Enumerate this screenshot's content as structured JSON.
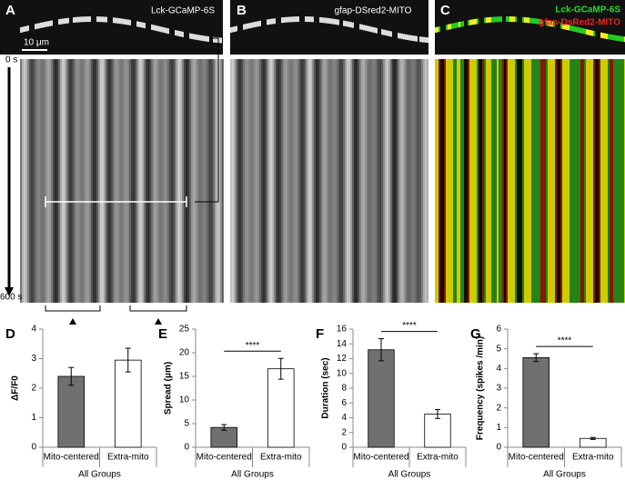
{
  "panels": [
    {
      "panel_label": "A",
      "label": "Lck-GCaMP-6S",
      "scale_bar": "10 μm",
      "time_start": "0 s",
      "time_end": "600 s"
    },
    {
      "panel_label": "B",
      "label": "gfap-DSred2-MITO"
    },
    {
      "panel_label": "C",
      "labels": [
        "Lck-GCaMP-6S",
        "gfap-DsRed2-MITO"
      ]
    }
  ],
  "chart_data": [
    {
      "type": "bar",
      "panel_label": "D",
      "ylabel": "ΔF/F0",
      "xlabel": "All Groups",
      "categories": [
        "Mito-centered",
        "Extra-mito"
      ],
      "values": [
        2.4,
        2.95
      ],
      "errors": [
        0.3,
        0.4
      ],
      "colors": [
        "#707070",
        "#ffffff"
      ],
      "ylim": [
        0,
        4
      ],
      "yticks": [
        0,
        1,
        2,
        3,
        4
      ]
    },
    {
      "type": "bar",
      "panel_label": "E",
      "ylabel": "Spread (μm)",
      "xlabel": "All Groups",
      "categories": [
        "Mito-centered",
        "Extra-mito"
      ],
      "values": [
        4.2,
        16.6
      ],
      "errors": [
        0.6,
        2.2
      ],
      "colors": [
        "#707070",
        "#ffffff"
      ],
      "ylim": [
        0,
        25
      ],
      "yticks": [
        0,
        5,
        10,
        15,
        20,
        25
      ],
      "significance": "****"
    },
    {
      "type": "bar",
      "panel_label": "F",
      "ylabel": "Duration (sec)",
      "xlabel": "All Groups",
      "categories": [
        "Mito-centered",
        "Extra-mito"
      ],
      "values": [
        13.2,
        4.5
      ],
      "errors": [
        1.5,
        0.6
      ],
      "colors": [
        "#707070",
        "#ffffff"
      ],
      "ylim": [
        0,
        16
      ],
      "yticks": [
        0,
        2,
        4,
        6,
        8,
        10,
        12,
        14,
        16
      ],
      "significance": "****"
    },
    {
      "type": "bar",
      "panel_label": "G",
      "ylabel": "Frequency (spikes /min)",
      "xlabel": "All Groups",
      "categories": [
        "Mito-centered",
        "Extra-mito"
      ],
      "values": [
        4.55,
        0.45
      ],
      "errors": [
        0.2,
        0.05
      ],
      "colors": [
        "#707070",
        "#ffffff"
      ],
      "ylim": [
        0,
        6
      ],
      "yticks": [
        0,
        1,
        2,
        3,
        4,
        5,
        6
      ],
      "significance": "****"
    }
  ]
}
